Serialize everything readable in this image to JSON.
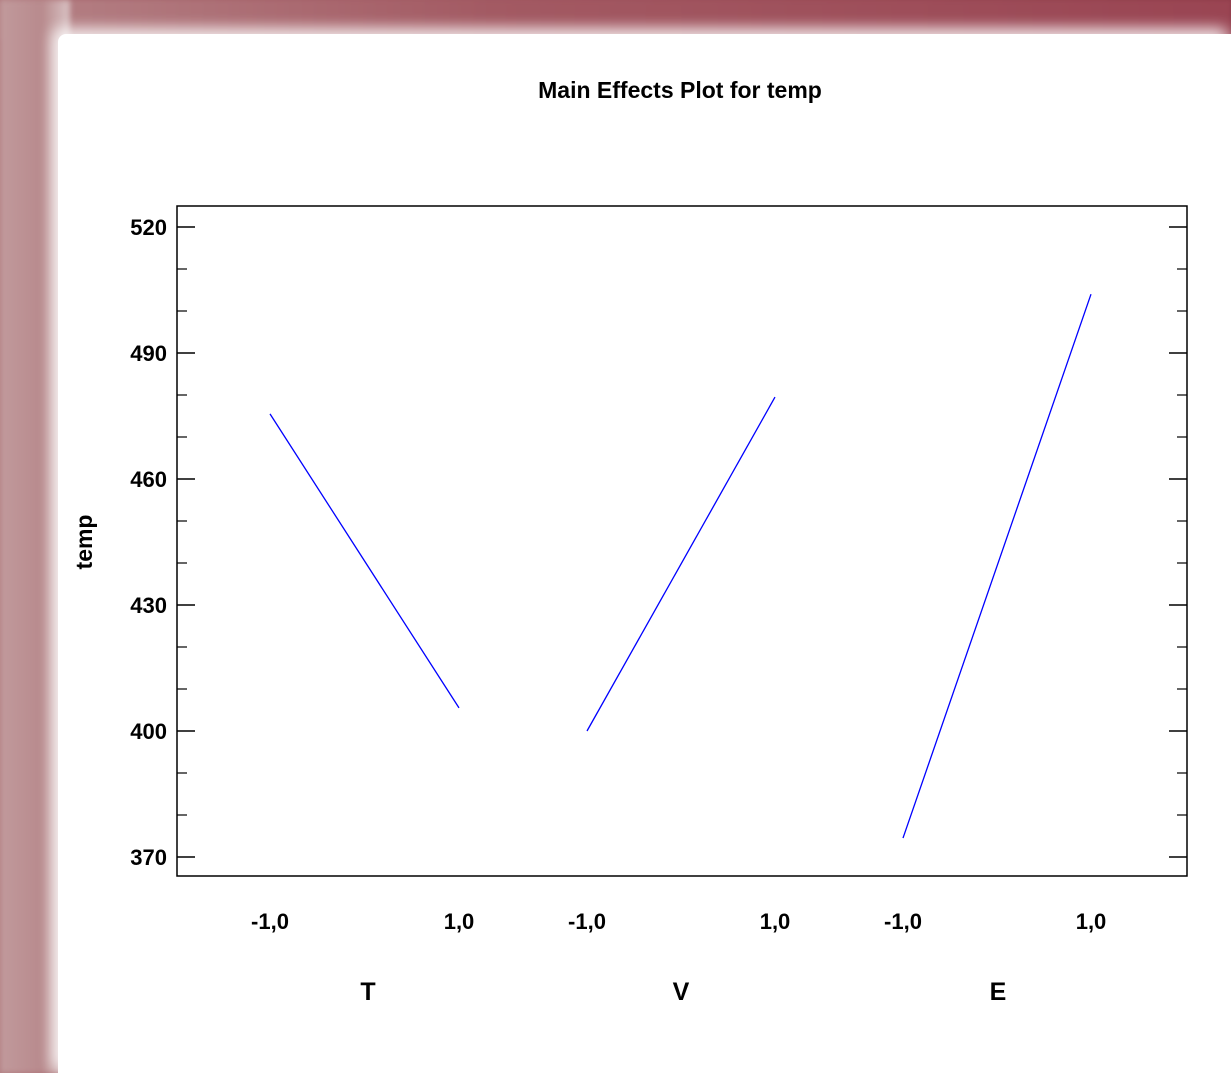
{
  "chart_data": {
    "type": "line",
    "title": "Main Effects Plot for temp",
    "ylabel": "temp",
    "ylim": [
      366,
      521
    ],
    "yticks": [
      370,
      400,
      430,
      460,
      490,
      520
    ],
    "factors": [
      {
        "name": "T",
        "x_labels": [
          "-1,0",
          "1,0"
        ],
        "x": [
          -1.0,
          1.0
        ],
        "y": [
          475.5,
          405.5
        ]
      },
      {
        "name": "V",
        "x_labels": [
          "-1,0",
          "1,0"
        ],
        "x": [
          -1.0,
          1.0
        ],
        "y": [
          400.0,
          479.5
        ]
      },
      {
        "name": "E",
        "x_labels": [
          "-1,0",
          "1,0"
        ],
        "x": [
          -1.0,
          1.0
        ],
        "y": [
          374.5,
          504.0
        ]
      }
    ],
    "line_color": "#0000ff",
    "grid": false
  }
}
